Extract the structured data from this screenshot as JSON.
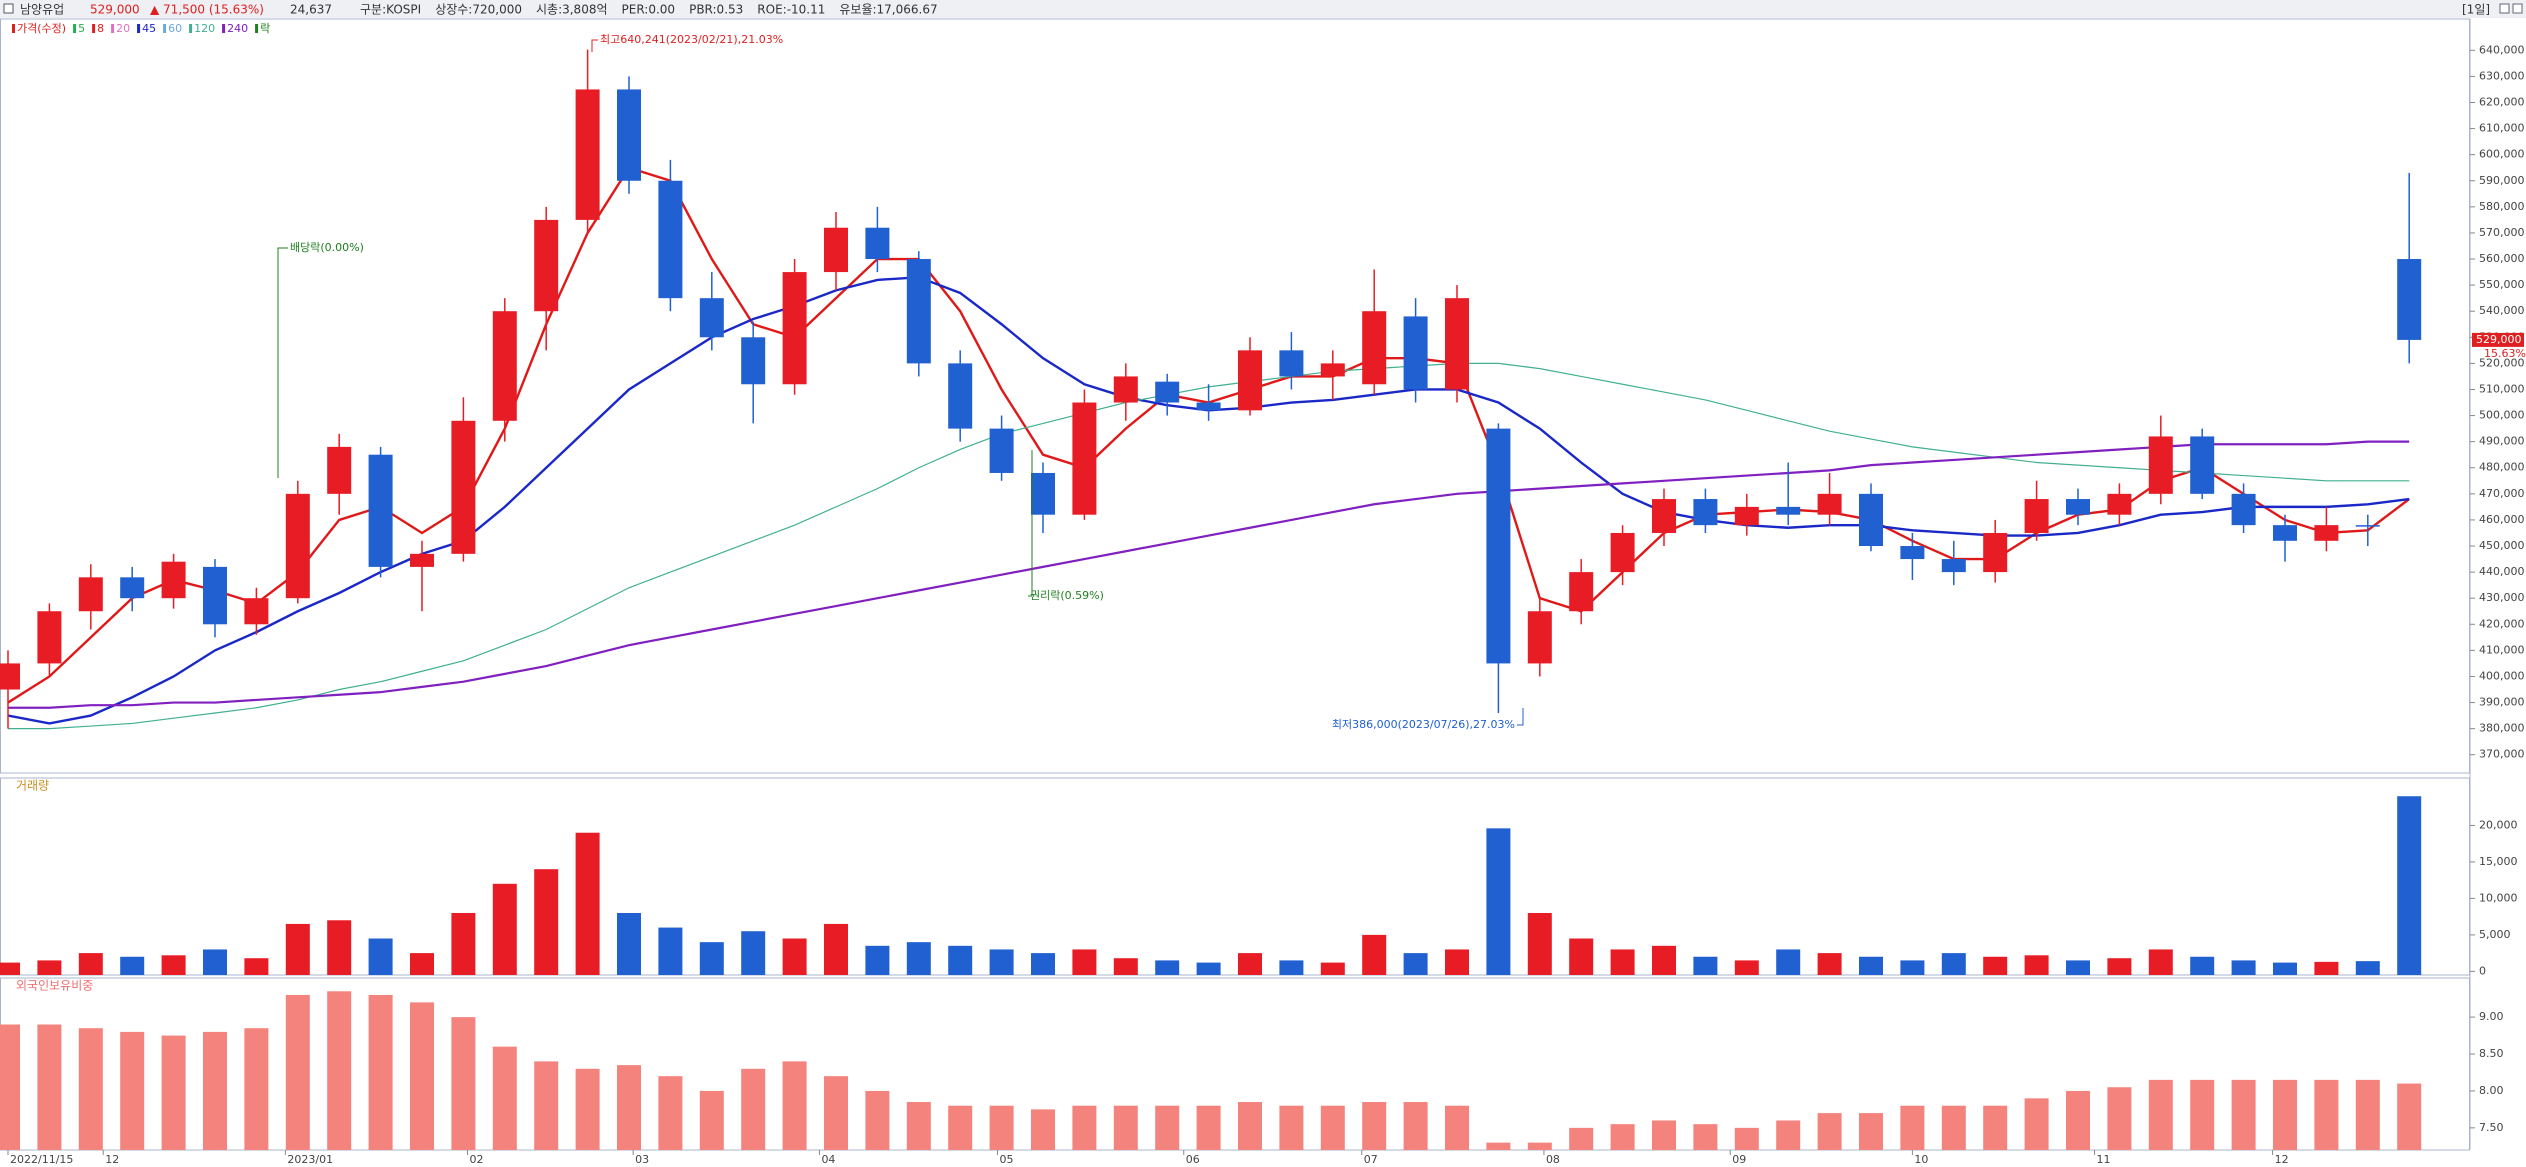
{
  "header": {
    "name": "남양유업",
    "price": "529,000",
    "change": "▲ 71,500 (15.63%)",
    "volume": "24,637",
    "items": [
      "구분:KOSPI",
      "상장수:720,000",
      "시총:3,808억",
      "PER:0.00",
      "PBR:0.53",
      "ROE:-10.11",
      "유보율:17,066.67"
    ],
    "period": "[1일]"
  },
  "chart_data": [
    {
      "type": "candlestick",
      "legend": [
        {
          "name": "가격(수정)",
          "color": "#e02020"
        },
        {
          "name": "5",
          "color": "#22b14c"
        },
        {
          "name": "8",
          "color": "#e02020"
        },
        {
          "name": "20",
          "color": "#e070c0"
        },
        {
          "name": "45",
          "color": "#1a28c8"
        },
        {
          "name": "60",
          "color": "#6aa8e8"
        },
        {
          "name": "120",
          "color": "#40b090"
        },
        {
          "name": "240",
          "color": "#8020c0"
        },
        {
          "name": "락",
          "color": "#208020"
        }
      ],
      "up_color": "#e81c24",
      "down_color": "#2060d0",
      "open": [
        395000,
        405000,
        425000,
        438000,
        430000,
        442000,
        420000,
        430000,
        470000,
        485000,
        442000,
        447000,
        498000,
        540000,
        575000,
        625000,
        590000,
        545000,
        530000,
        512000,
        555000,
        572000,
        560000,
        520000,
        495000,
        478000,
        462000,
        505000,
        513000,
        505000,
        502000,
        525000,
        515000,
        512000,
        538000,
        510000,
        495000,
        405000,
        425000,
        440000,
        455000,
        468000,
        458000,
        465000,
        462000,
        470000,
        450000,
        445000,
        440000,
        455000,
        468000,
        462000,
        470000,
        492000,
        470000,
        458000,
        452000,
        458000,
        560000
      ],
      "high": [
        410000,
        428000,
        443000,
        442000,
        447000,
        445000,
        434000,
        475000,
        493000,
        488000,
        452000,
        507000,
        545000,
        580000,
        640241,
        630000,
        598000,
        555000,
        536000,
        560000,
        578000,
        580000,
        563000,
        525000,
        500000,
        482000,
        510000,
        520000,
        516000,
        512000,
        530000,
        532000,
        525000,
        556000,
        545000,
        550000,
        497000,
        430000,
        445000,
        458000,
        472000,
        472000,
        470000,
        482000,
        478000,
        474000,
        455000,
        452000,
        460000,
        475000,
        472000,
        474000,
        500000,
        495000,
        474000,
        462000,
        465000,
        462000,
        593000
      ],
      "low": [
        380000,
        400000,
        418000,
        425000,
        426000,
        415000,
        416000,
        428000,
        462000,
        438000,
        425000,
        444000,
        490000,
        525000,
        570000,
        585000,
        540000,
        525000,
        497000,
        508000,
        548000,
        555000,
        515000,
        490000,
        475000,
        455000,
        460000,
        498000,
        500000,
        498000,
        500000,
        510000,
        506000,
        508000,
        505000,
        505000,
        386000,
        400000,
        420000,
        435000,
        450000,
        455000,
        454000,
        458000,
        458000,
        448000,
        437000,
        435000,
        436000,
        452000,
        458000,
        458000,
        466000,
        468000,
        455000,
        444000,
        448000,
        450000,
        520000
      ],
      "close": [
        405000,
        425000,
        438000,
        430000,
        444000,
        420000,
        430000,
        470000,
        488000,
        442000,
        447000,
        498000,
        540000,
        575000,
        625000,
        590000,
        545000,
        530000,
        512000,
        555000,
        572000,
        560000,
        520000,
        495000,
        478000,
        462000,
        505000,
        515000,
        505000,
        502000,
        525000,
        515000,
        520000,
        540000,
        510000,
        545000,
        405000,
        425000,
        440000,
        455000,
        468000,
        458000,
        465000,
        462000,
        470000,
        450000,
        445000,
        440000,
        455000,
        468000,
        462000,
        470000,
        492000,
        470000,
        458000,
        452000,
        458000,
        457500,
        529000
      ],
      "lines": [
        {
          "name": "8",
          "color": "#e01818",
          "width": 2.4,
          "values": [
            390000,
            400000,
            415000,
            430000,
            437000,
            433000,
            428000,
            440000,
            460000,
            465000,
            455000,
            465000,
            495000,
            535000,
            570000,
            595000,
            590000,
            560000,
            535000,
            530000,
            545000,
            560000,
            560000,
            540000,
            510000,
            485000,
            480000,
            495000,
            508000,
            505000,
            510000,
            515000,
            515000,
            522000,
            522000,
            520000,
            480000,
            430000,
            425000,
            440000,
            455000,
            462000,
            463000,
            464000,
            463000,
            460000,
            452000,
            445000,
            445000,
            455000,
            462000,
            464000,
            475000,
            480000,
            470000,
            460000,
            455000,
            456000,
            468000
          ]
        },
        {
          "name": "45",
          "color": "#1a28c8",
          "width": 2.4,
          "values": [
            385000,
            382000,
            385000,
            392000,
            400000,
            410000,
            417000,
            425000,
            432000,
            440000,
            447000,
            452000,
            465000,
            480000,
            495000,
            510000,
            520000,
            530000,
            537000,
            542000,
            548000,
            552000,
            553000,
            547000,
            535000,
            522000,
            512000,
            507000,
            504000,
            502000,
            503000,
            505000,
            506000,
            508000,
            510000,
            510000,
            505000,
            495000,
            482000,
            470000,
            463000,
            460000,
            458000,
            457000,
            458000,
            458000,
            456000,
            455000,
            454000,
            454000,
            455000,
            458000,
            462000,
            463000,
            465000,
            465000,
            465000,
            466000,
            468000
          ]
        },
        {
          "name": "120",
          "color": "#40b090",
          "width": 1.2,
          "values": [
            380000,
            380000,
            381000,
            382000,
            384000,
            386000,
            388000,
            391000,
            395000,
            398000,
            402000,
            406000,
            412000,
            418000,
            426000,
            434000,
            440000,
            446000,
            452000,
            458000,
            465000,
            472000,
            480000,
            487000,
            493000,
            497000,
            501000,
            505000,
            508000,
            511000,
            513000,
            515000,
            517000,
            518000,
            519000,
            520000,
            520000,
            518000,
            515000,
            512000,
            509000,
            506000,
            502000,
            498000,
            494000,
            491000,
            488000,
            486000,
            484000,
            482000,
            481000,
            480000,
            479000,
            478000,
            477000,
            476000,
            475000,
            475000,
            475000
          ]
        },
        {
          "name": "240",
          "color": "#8020c0",
          "width": 2.2,
          "values": [
            388000,
            388000,
            389000,
            389000,
            390000,
            390000,
            391000,
            392000,
            393000,
            394000,
            396000,
            398000,
            401000,
            404000,
            408000,
            412000,
            415000,
            418000,
            421000,
            424000,
            427000,
            430000,
            433000,
            436000,
            439000,
            442000,
            445000,
            448000,
            451000,
            454000,
            457000,
            460000,
            463000,
            466000,
            468000,
            470000,
            471000,
            472000,
            473000,
            474000,
            475000,
            476000,
            477000,
            478000,
            479000,
            481000,
            482000,
            483000,
            484000,
            485000,
            486000,
            487000,
            488000,
            489000,
            489000,
            489000,
            489000,
            490000,
            490000
          ]
        }
      ],
      "annotations": [
        {
          "text": "최고640,241(2023/02/21),21.03%",
          "color": "#e02020"
        },
        {
          "text": "배당락(0.00%)",
          "color": "#208020"
        },
        {
          "text": "권리락(0.59%)",
          "color": "#208020"
        },
        {
          "text": "최저386,000(2023/07/26),27.03%",
          "color": "#2060d0"
        }
      ],
      "last_price_label": "529,000",
      "last_change_label": "15.63%",
      "ylim": [
        363000,
        652000
      ],
      "yticks": [
        {
          "value": 370000,
          "label": "370,000"
        },
        {
          "value": 380000,
          "label": "380,000"
        },
        {
          "value": 390000,
          "label": "390,000"
        },
        {
          "value": 400000,
          "label": "400,000"
        },
        {
          "value": 410000,
          "label": "410,000"
        },
        {
          "value": 420000,
          "label": "420,000"
        },
        {
          "value": 430000,
          "label": "430,000"
        },
        {
          "value": 440000,
          "label": "440,000"
        },
        {
          "value": 450000,
          "label": "450,000"
        },
        {
          "value": 460000,
          "label": "460,000"
        },
        {
          "value": 470000,
          "label": "470,000"
        },
        {
          "value": 480000,
          "label": "480,000"
        },
        {
          "value": 490000,
          "label": "490,000"
        },
        {
          "value": 500000,
          "label": "500,000"
        },
        {
          "value": 510000,
          "label": "510,000"
        },
        {
          "value": 520000,
          "label": "520,000"
        },
        {
          "value": 530000,
          "label": "530,000"
        },
        {
          "value": 540000,
          "label": "540,000"
        },
        {
          "value": 550000,
          "label": "550,000"
        },
        {
          "value": 560000,
          "label": "560,000"
        },
        {
          "value": 570000,
          "label": "570,000"
        },
        {
          "value": 580000,
          "label": "580,000"
        },
        {
          "value": 590000,
          "label": "590,000"
        },
        {
          "value": 600000,
          "label": "600,000"
        },
        {
          "value": 610000,
          "label": "610,000"
        },
        {
          "value": 620000,
          "label": "620,000"
        },
        {
          "value": 630000,
          "label": "630,000"
        },
        {
          "value": 640000,
          "label": "640,000"
        }
      ]
    },
    {
      "type": "bar",
      "title": "거래량",
      "up_color": "#e81c24",
      "down_color": "#2060d0",
      "values": [
        1200,
        1500,
        2500,
        2000,
        2200,
        3000,
        1800,
        6500,
        7000,
        4500,
        2500,
        8000,
        12000,
        14000,
        19000,
        8000,
        6000,
        4000,
        5500,
        4500,
        6500,
        3500,
        4000,
        3500,
        3000,
        2500,
        3000,
        1800,
        1500,
        1200,
        2500,
        1500,
        1200,
        5000,
        2500,
        3000,
        19600,
        8000,
        4500,
        3000,
        3500,
        2000,
        1500,
        3000,
        2500,
        2000,
        1500,
        2500,
        2000,
        2200,
        1500,
        1800,
        3000,
        2000,
        1500,
        1200,
        1300,
        1400,
        24000
      ],
      "ylim": [
        -500,
        26500
      ],
      "yticks": [
        0,
        {
          "value": 5000,
          "label": "5,000"
        },
        {
          "value": 10000,
          "label": "10,000"
        },
        {
          "value": 15000,
          "label": "15,000"
        },
        {
          "value": 20000,
          "label": "20,000"
        }
      ]
    },
    {
      "type": "bar",
      "title": "외국인보유비중",
      "color": "#f4837d",
      "values": [
        8.9,
        8.9,
        8.85,
        8.8,
        8.75,
        8.8,
        8.85,
        9.3,
        9.35,
        9.3,
        9.2,
        9.0,
        8.6,
        8.4,
        8.3,
        8.35,
        8.2,
        8.0,
        8.3,
        8.4,
        8.2,
        8.0,
        7.85,
        7.8,
        7.8,
        7.75,
        7.8,
        7.8,
        7.8,
        7.8,
        7.85,
        7.8,
        7.8,
        7.85,
        7.85,
        7.8,
        7.3,
        7.3,
        7.5,
        7.55,
        7.6,
        7.55,
        7.5,
        7.6,
        7.7,
        7.7,
        7.8,
        7.8,
        7.8,
        7.9,
        8.0,
        8.05,
        8.15,
        8.15,
        8.15,
        8.15,
        8.15,
        8.15,
        8.1
      ],
      "ylim": [
        7.2,
        9.53
      ],
      "yticks": [
        {
          "value": 7.5,
          "label": "7.50"
        },
        {
          "value": 8,
          "label": "8.00"
        },
        {
          "value": 8.5,
          "label": "8.50"
        },
        {
          "value": 9,
          "label": "9.00"
        }
      ],
      "xticks": [
        {
          "value": 0,
          "label": "2022/11/15"
        },
        {
          "value": 2.3,
          "label": "12"
        },
        {
          "value": 6.7,
          "label": "2023/01"
        },
        {
          "value": 11.1,
          "label": "02"
        },
        {
          "value": 15.1,
          "label": "03"
        },
        {
          "value": 19.6,
          "label": "04"
        },
        {
          "value": 23.9,
          "label": "05"
        },
        {
          "value": 28.4,
          "label": "06"
        },
        {
          "value": 32.7,
          "label": "07"
        },
        {
          "value": 37.1,
          "label": "08"
        },
        {
          "value": 41.6,
          "label": "09"
        },
        {
          "value": 46.0,
          "label": "10"
        },
        {
          "value": 50.4,
          "label": "11"
        },
        {
          "value": 54.7,
          "label": "12"
        }
      ]
    }
  ]
}
